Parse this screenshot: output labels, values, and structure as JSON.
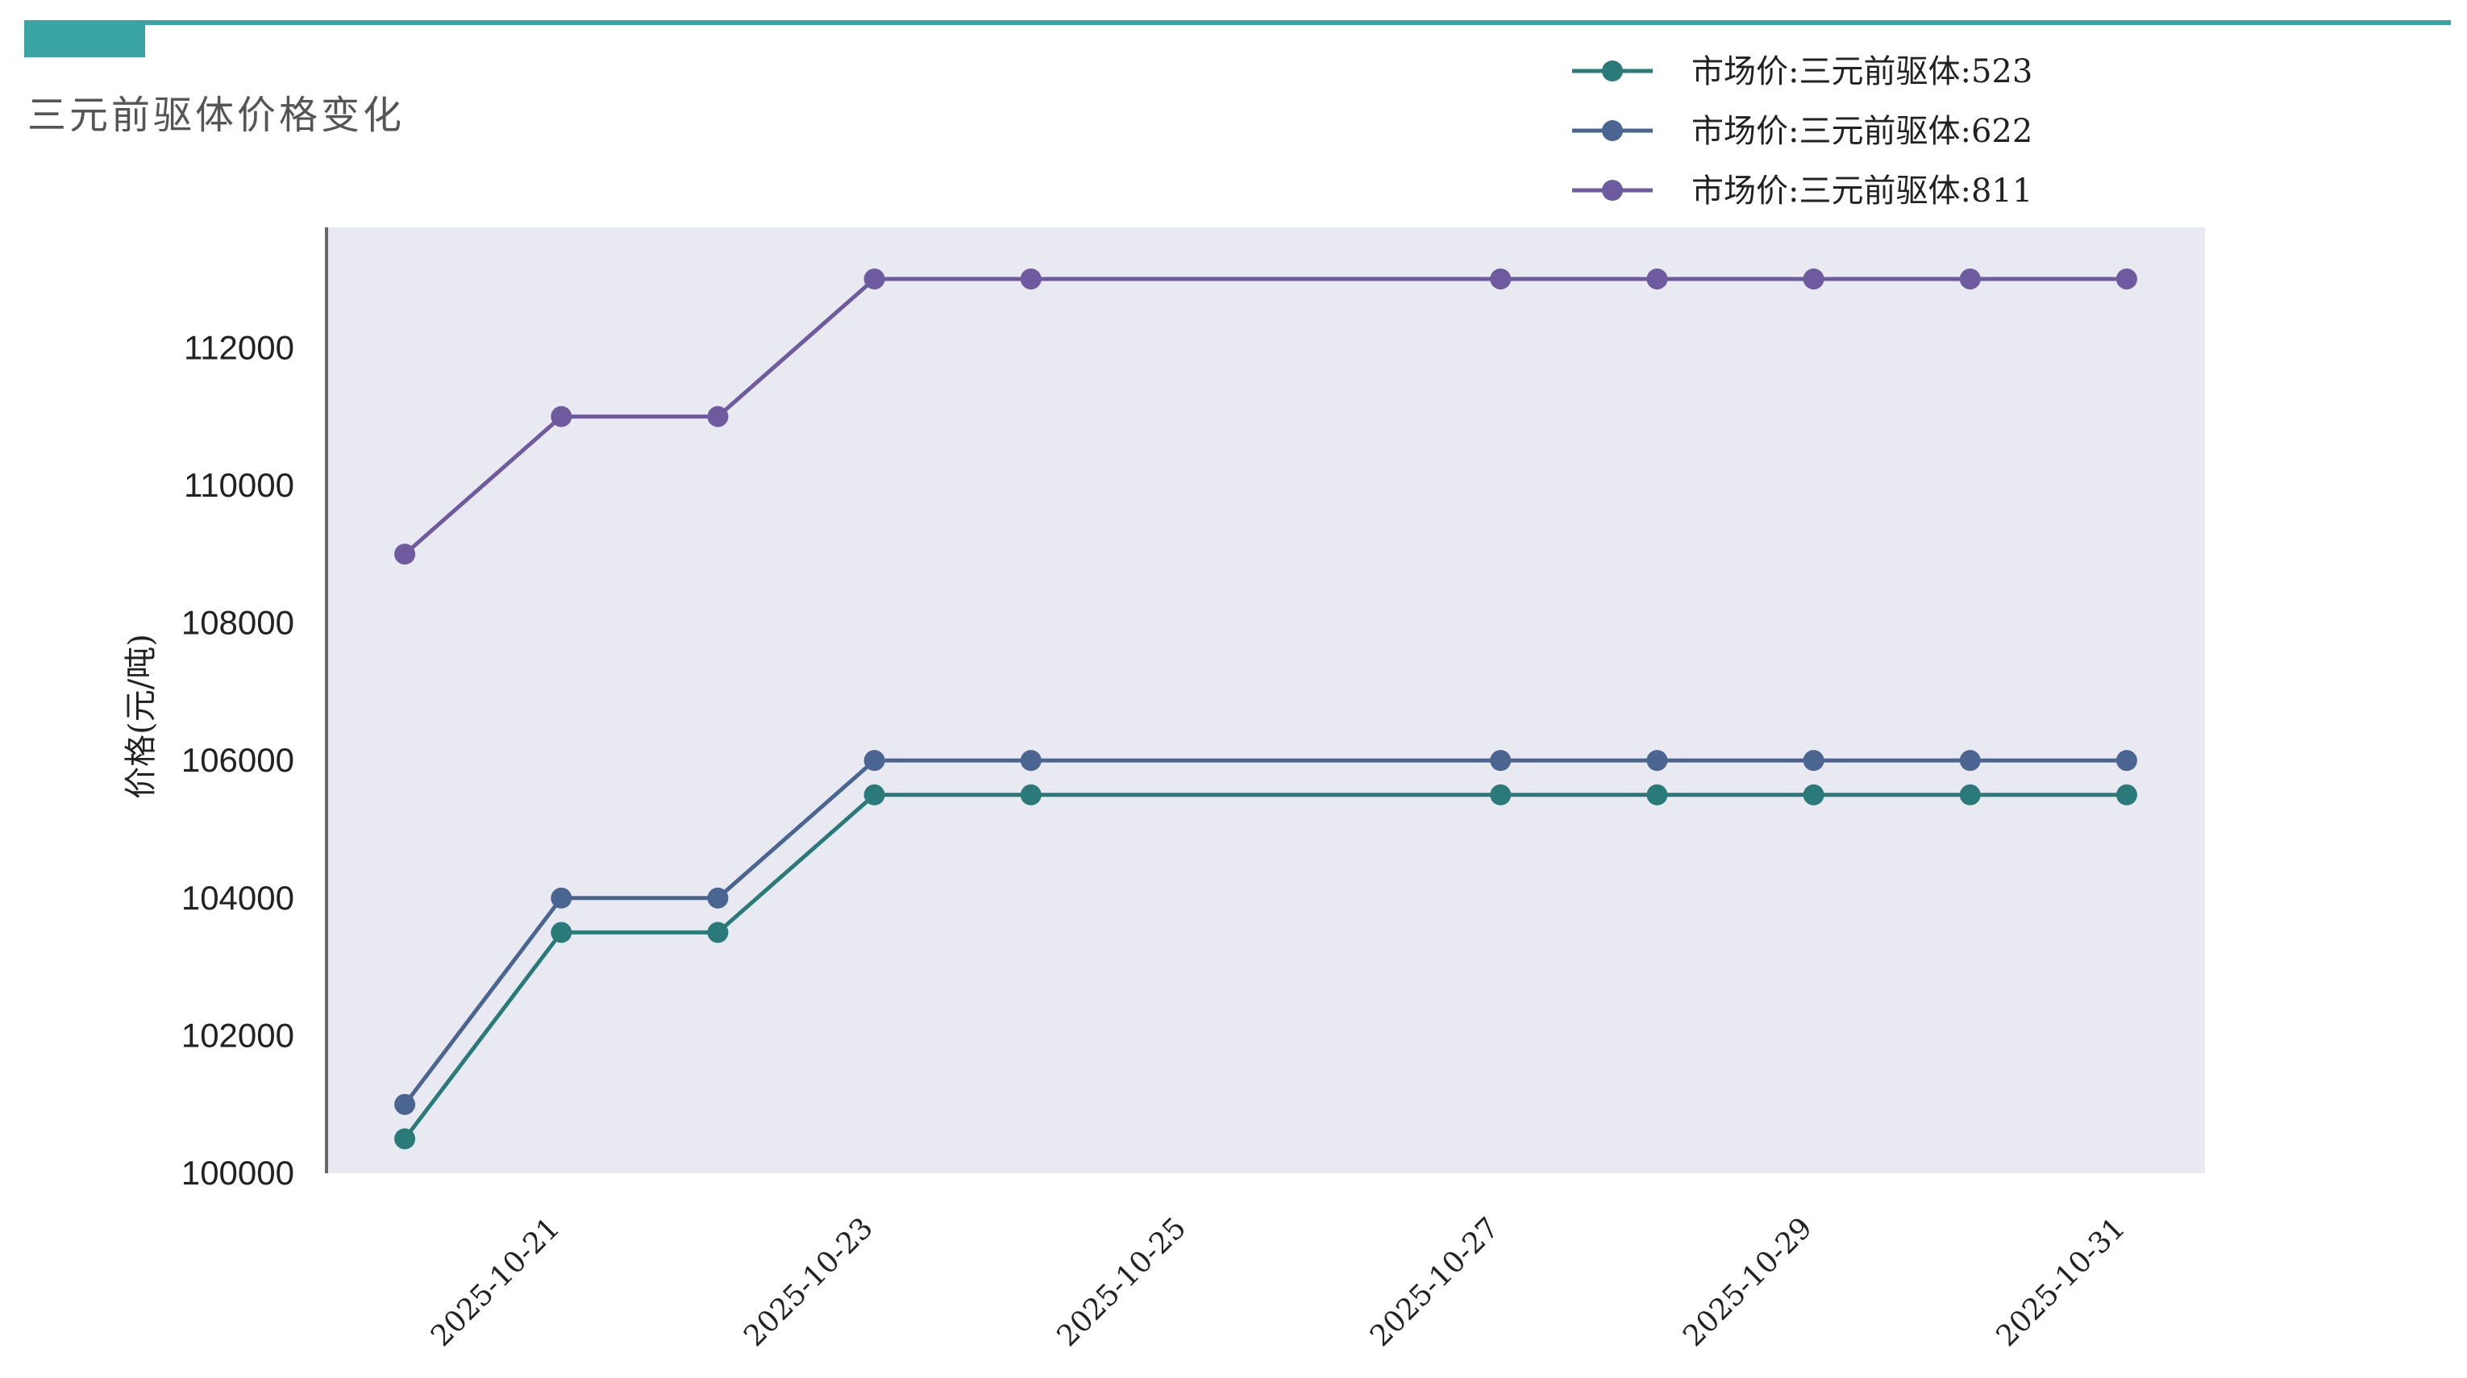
{
  "page": {
    "title": "三元前驱体价格变化",
    "accent_color": "#3aa3a3"
  },
  "chart_data": {
    "type": "line",
    "title": "",
    "xlabel": "",
    "ylabel": "价格(元/吨)",
    "x": [
      "2025-10-20",
      "2025-10-21",
      "2025-10-22",
      "2025-10-23",
      "2025-10-24",
      "2025-10-27",
      "2025-10-28",
      "2025-10-29",
      "2025-10-30",
      "2025-10-31"
    ],
    "xticks": [
      "2025-10-21",
      "2025-10-23",
      "2025-10-25",
      "2025-10-27",
      "2025-10-29",
      "2025-10-31"
    ],
    "yticks": [
      100000,
      102000,
      104000,
      106000,
      108000,
      110000,
      112000
    ],
    "ylim": [
      100000,
      113750
    ],
    "xlim": [
      "2025-10-19 12:00",
      "2025-10-31 12:00"
    ],
    "grid": false,
    "background_color": "#e9e9f2",
    "legend_position": "top-right",
    "series": [
      {
        "name": "市场价:三元前驱体:523",
        "color": "#2a7a7a",
        "values": [
          100500,
          103500,
          103500,
          105500,
          105500,
          105500,
          105500,
          105500,
          105500,
          105500
        ]
      },
      {
        "name": "市场价:三元前驱体:622",
        "color": "#4a6592",
        "values": [
          101000,
          104000,
          104000,
          106000,
          106000,
          106000,
          106000,
          106000,
          106000,
          106000
        ]
      },
      {
        "name": "市场价:三元前驱体:811",
        "color": "#6e5a9e",
        "values": [
          109000,
          111000,
          111000,
          113000,
          113000,
          113000,
          113000,
          113000,
          113000,
          113000
        ]
      }
    ]
  }
}
